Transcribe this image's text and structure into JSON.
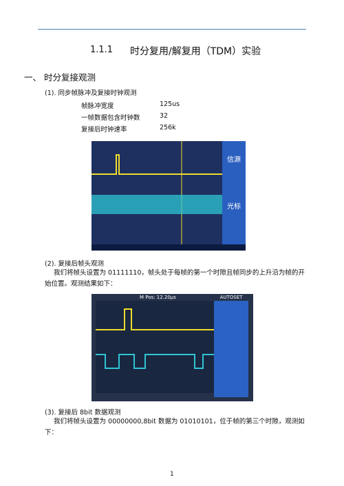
{
  "header": {
    "section_number": "1.1.1",
    "title": "时分复用/解复用（TDM）实验"
  },
  "section": {
    "title": "一、 时分复接观测"
  },
  "subsections": [
    {
      "title": "(1). 同步帧脉冲及复接时钟观测",
      "table": {
        "rows": [
          [
            "帧脉冲宽度",
            "125us"
          ],
          [
            "一帧数据包含时钟数",
            "32"
          ],
          [
            "复接后时钟速率",
            "256k"
          ]
        ]
      }
    },
    {
      "title": "(2). 复接后帧头观测",
      "paragraph": "我们将帧头设置为 01111110，帧头处于每帧的第一个时隙且帧同步的上升沿为帧的开始位置。观测结果如下："
    },
    {
      "title": "(3). 复接后 8bit 数据观测",
      "paragraph": "我们将帧头设置为 00000000,8bit 数据为 01010101，位于帧的第三个时隙，观测如下："
    }
  ],
  "figures": [
    {
      "labels": [
        "信源",
        "光标"
      ]
    },
    {
      "labels": [
        "M Pos: 12.20µs",
        "AUTOSET"
      ]
    }
  ],
  "page_number": "1"
}
